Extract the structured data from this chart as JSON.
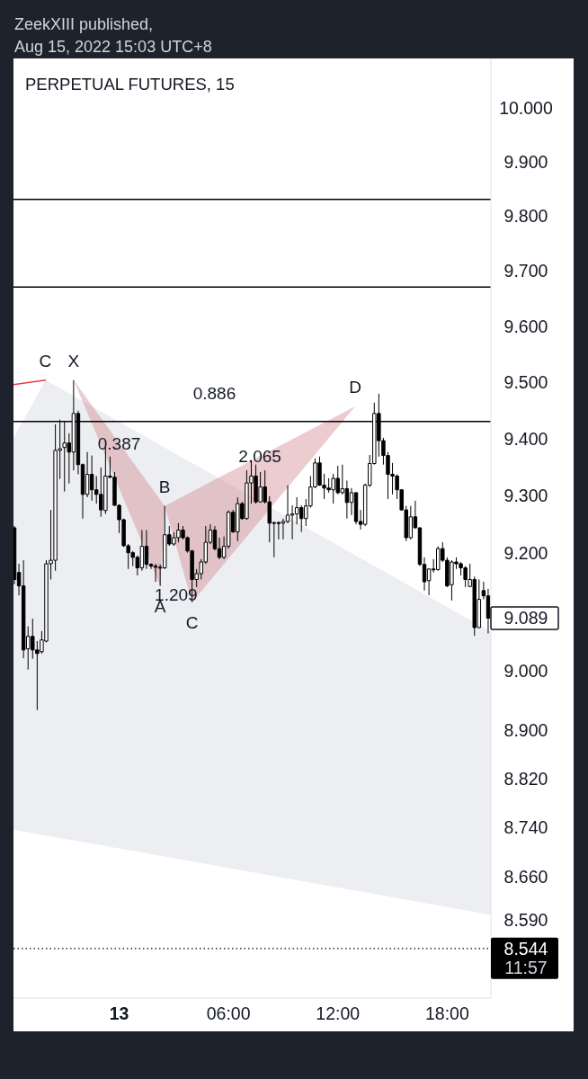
{
  "chart_data": {
    "type": "candlestick",
    "title": "PERPETUAL FUTURES, 15",
    "color": "#000000",
    "log": true,
    "x": [
      "2022-08-12T18:15",
      "2022-08-12T18:30",
      "2022-08-12T18:45",
      "2022-08-12T19:00",
      "2022-08-12T19:15",
      "2022-08-12T19:30",
      "2022-08-12T19:45",
      "2022-08-12T20:00",
      "2022-08-12T20:15",
      "2022-08-12T20:30",
      "2022-08-12T20:45",
      "2022-08-12T21:00",
      "2022-08-12T21:15",
      "2022-08-12T21:30",
      "2022-08-12T21:45",
      "2022-08-12T22:00",
      "2022-08-12T22:15",
      "2022-08-12T22:30",
      "2022-08-12T22:45",
      "2022-08-12T23:00",
      "2022-08-12T23:15",
      "2022-08-12T23:30",
      "2022-08-12T23:45",
      "2022-08-13T00:00",
      "2022-08-13T00:15",
      "2022-08-13T00:30",
      "2022-08-13T00:45",
      "2022-08-13T01:00",
      "2022-08-13T01:15",
      "2022-08-13T01:30",
      "2022-08-13T01:45",
      "2022-08-13T02:00",
      "2022-08-13T02:15",
      "2022-08-13T02:30",
      "2022-08-13T02:45",
      "2022-08-13T03:00",
      "2022-08-13T03:15",
      "2022-08-13T03:30",
      "2022-08-13T03:45",
      "2022-08-13T04:00",
      "2022-08-13T04:15",
      "2022-08-13T04:30",
      "2022-08-13T04:45",
      "2022-08-13T05:00",
      "2022-08-13T05:15",
      "2022-08-13T05:30",
      "2022-08-13T05:45",
      "2022-08-13T06:00",
      "2022-08-13T06:15",
      "2022-08-13T06:30",
      "2022-08-13T06:45",
      "2022-08-13T07:00",
      "2022-08-13T07:15",
      "2022-08-13T07:30",
      "2022-08-13T07:45",
      "2022-08-13T08:00",
      "2022-08-13T08:15",
      "2022-08-13T08:30",
      "2022-08-13T08:45",
      "2022-08-13T09:00",
      "2022-08-13T09:15",
      "2022-08-13T09:30",
      "2022-08-13T09:45",
      "2022-08-13T10:00",
      "2022-08-13T10:15",
      "2022-08-13T10:30",
      "2022-08-13T10:45",
      "2022-08-13T11:00",
      "2022-08-13T11:15",
      "2022-08-13T11:30",
      "2022-08-13T11:45",
      "2022-08-13T12:00",
      "2022-08-13T12:15",
      "2022-08-13T12:30",
      "2022-08-13T12:45",
      "2022-08-13T13:00",
      "2022-08-13T13:15",
      "2022-08-13T13:30",
      "2022-08-13T13:45",
      "2022-08-13T14:00",
      "2022-08-13T14:15",
      "2022-08-13T14:30",
      "2022-08-13T14:45",
      "2022-08-13T15:00",
      "2022-08-13T15:15",
      "2022-08-13T15:30",
      "2022-08-13T15:45",
      "2022-08-13T16:00",
      "2022-08-13T16:15",
      "2022-08-13T16:30",
      "2022-08-13T16:45",
      "2022-08-13T17:00",
      "2022-08-13T17:15",
      "2022-08-13T17:30",
      "2022-08-13T17:45",
      "2022-08-13T18:00",
      "2022-08-13T18:15",
      "2022-08-13T18:30",
      "2022-08-13T18:45",
      "2022-08-13T19:00",
      "2022-08-13T19:15",
      "2022-08-13T19:30",
      "2022-08-13T19:45",
      "2022-08-13T20:00",
      "2022-08-13T20:15"
    ],
    "ohlc": [
      [
        9.244,
        9.247,
        9.147,
        9.155
      ],
      [
        9.167,
        9.182,
        9.128,
        9.144
      ],
      [
        9.144,
        9.188,
        9.021,
        9.035
      ],
      [
        9.037,
        9.075,
        9.002,
        9.058
      ],
      [
        9.058,
        9.088,
        9.02,
        9.035
      ],
      [
        9.035,
        9.05,
        8.934,
        9.029
      ],
      [
        9.032,
        9.067,
        9.029,
        9.052
      ],
      [
        9.05,
        9.188,
        9.048,
        9.182
      ],
      [
        9.182,
        9.275,
        9.155,
        9.188
      ],
      [
        9.188,
        9.425,
        9.17,
        9.379
      ],
      [
        9.379,
        9.433,
        9.329,
        9.382
      ],
      [
        9.384,
        9.431,
        9.307,
        9.392
      ],
      [
        9.392,
        9.409,
        9.321,
        9.376
      ],
      [
        9.376,
        9.503,
        9.344,
        9.444
      ],
      [
        9.444,
        9.449,
        9.337,
        9.354
      ],
      [
        9.354,
        9.356,
        9.26,
        9.302
      ],
      [
        9.302,
        9.376,
        9.297,
        9.337
      ],
      [
        9.337,
        9.37,
        9.291,
        9.31
      ],
      [
        9.31,
        9.334,
        9.286,
        9.302
      ],
      [
        9.302,
        9.349,
        9.263,
        9.275
      ],
      [
        9.274,
        9.385,
        9.268,
        9.334
      ],
      [
        9.334,
        9.368,
        9.33,
        9.332
      ],
      [
        9.332,
        9.341,
        9.282,
        9.283
      ],
      [
        9.283,
        9.285,
        9.235,
        9.258
      ],
      [
        9.258,
        9.26,
        9.211,
        9.213
      ],
      [
        9.213,
        9.216,
        9.173,
        9.201
      ],
      [
        9.201,
        9.204,
        9.178,
        9.193
      ],
      [
        9.193,
        9.196,
        9.162,
        9.175
      ],
      [
        9.175,
        9.24,
        9.17,
        9.212
      ],
      [
        9.212,
        9.24,
        9.173,
        9.181
      ],
      [
        9.181,
        9.183,
        9.173,
        9.178
      ],
      [
        9.178,
        9.182,
        9.151,
        9.176
      ],
      [
        9.176,
        9.181,
        9.144,
        9.175
      ],
      [
        9.175,
        9.282,
        9.173,
        9.232
      ],
      [
        9.232,
        9.247,
        9.213,
        9.216
      ],
      [
        9.216,
        9.236,
        9.213,
        9.227
      ],
      [
        9.227,
        9.252,
        9.219,
        9.24
      ],
      [
        9.24,
        9.247,
        9.224,
        9.227
      ],
      [
        9.227,
        9.229,
        9.201,
        9.204
      ],
      [
        9.204,
        9.206,
        9.116,
        9.155
      ],
      [
        9.155,
        9.173,
        9.142,
        9.165
      ],
      [
        9.165,
        9.19,
        9.155,
        9.185
      ],
      [
        9.185,
        9.247,
        9.182,
        9.219
      ],
      [
        9.219,
        9.25,
        9.216,
        9.24
      ],
      [
        9.24,
        9.247,
        9.205,
        9.208
      ],
      [
        9.208,
        9.227,
        9.19,
        9.193
      ],
      [
        9.193,
        9.229,
        9.19,
        9.212
      ],
      [
        9.212,
        9.274,
        9.208,
        9.271
      ],
      [
        9.271,
        9.275,
        9.235,
        9.237
      ],
      [
        9.237,
        9.297,
        9.221,
        9.286
      ],
      [
        9.286,
        9.289,
        9.258,
        9.26
      ],
      [
        9.26,
        9.344,
        9.258,
        9.322
      ],
      [
        9.322,
        9.362,
        9.286,
        9.334
      ],
      [
        9.334,
        9.354,
        9.286,
        9.289
      ],
      [
        9.289,
        9.341,
        9.288,
        9.315
      ],
      [
        9.315,
        9.344,
        9.286,
        9.289
      ],
      [
        9.289,
        9.299,
        9.219,
        9.252
      ],
      [
        9.252,
        9.255,
        9.193,
        9.253
      ],
      [
        9.253,
        9.255,
        9.224,
        9.252
      ],
      [
        9.252,
        9.26,
        9.224,
        9.255
      ],
      [
        9.255,
        9.318,
        9.252,
        9.266
      ],
      [
        9.266,
        9.283,
        9.224,
        9.268
      ],
      [
        9.268,
        9.297,
        9.25,
        9.279
      ],
      [
        9.279,
        9.283,
        9.237,
        9.26
      ],
      [
        9.26,
        9.294,
        9.247,
        9.282
      ],
      [
        9.282,
        9.334,
        9.279,
        9.315
      ],
      [
        9.315,
        9.365,
        9.313,
        9.357
      ],
      [
        9.357,
        9.368,
        9.317,
        9.318
      ],
      [
        9.318,
        9.338,
        9.294,
        9.313
      ],
      [
        9.313,
        9.33,
        9.305,
        9.31
      ],
      [
        9.31,
        9.338,
        9.286,
        9.33
      ],
      [
        9.33,
        9.352,
        9.302,
        9.305
      ],
      [
        9.305,
        9.354,
        9.302,
        9.312
      ],
      [
        9.312,
        9.326,
        9.26,
        9.288
      ],
      [
        9.288,
        9.313,
        9.266,
        9.305
      ],
      [
        9.305,
        9.306,
        9.25,
        9.255
      ],
      [
        9.255,
        9.275,
        9.241,
        9.25
      ],
      [
        9.25,
        9.321,
        9.247,
        9.318
      ],
      [
        9.318,
        9.371,
        9.315,
        9.356
      ],
      [
        9.356,
        9.463,
        9.354,
        9.444
      ],
      [
        9.444,
        9.479,
        9.368,
        9.396
      ],
      [
        9.396,
        9.401,
        9.354,
        9.37
      ],
      [
        9.37,
        9.376,
        9.294,
        9.337
      ],
      [
        9.337,
        9.357,
        9.302,
        9.334
      ],
      [
        9.334,
        9.337,
        9.294,
        9.31
      ],
      [
        9.31,
        9.311,
        9.274,
        9.275
      ],
      [
        9.275,
        9.282,
        9.221,
        9.227
      ],
      [
        9.227,
        9.282,
        9.224,
        9.263
      ],
      [
        9.263,
        9.291,
        9.243,
        9.244
      ],
      [
        9.244,
        9.245,
        9.178,
        9.181
      ],
      [
        9.181,
        9.193,
        9.136,
        9.151
      ],
      [
        9.153,
        9.174,
        9.128,
        9.173
      ],
      [
        9.173,
        9.19,
        9.167,
        9.172
      ],
      [
        9.172,
        9.212,
        9.17,
        9.208
      ],
      [
        9.208,
        9.219,
        9.185,
        9.188
      ],
      [
        9.188,
        9.193,
        9.142,
        9.144
      ],
      [
        9.146,
        9.188,
        9.119,
        9.185
      ],
      [
        9.185,
        9.193,
        9.173,
        9.182
      ],
      [
        9.182,
        9.185,
        9.162,
        9.175
      ],
      [
        9.175,
        9.178,
        9.142,
        9.155
      ],
      [
        9.143,
        9.182,
        9.142,
        9.155
      ],
      [
        9.155,
        9.16,
        9.059,
        9.073
      ],
      [
        9.073,
        9.155,
        9.072,
        9.121
      ],
      [
        9.136,
        9.151,
        9.121,
        9.127
      ],
      [
        9.127,
        9.139,
        9.063,
        9.089
      ]
    ],
    "xlim": [
      "2022-08-12T18:12",
      "2022-08-13T20:24"
    ],
    "xticks": [
      {
        "value": "2022-08-13T00:00",
        "label": "13"
      },
      {
        "value": "2022-08-13T06:00",
        "label": "06:00"
      },
      {
        "value": "2022-08-13T12:00",
        "label": "12:00"
      },
      {
        "value": "2022-08-13T18:00",
        "label": "18:00"
      }
    ],
    "ylim": [
      8.465,
      10.093
    ],
    "yticks": [
      {
        "value": 10,
        "label": "10.000"
      },
      {
        "value": 9.9,
        "label": "9.900"
      },
      {
        "value": 9.8,
        "label": "9.800"
      },
      {
        "value": 9.7,
        "label": "9.700"
      },
      {
        "value": 9.6,
        "label": "9.600"
      },
      {
        "value": 9.5,
        "label": "9.500"
      },
      {
        "value": 9.4,
        "label": "9.400"
      },
      {
        "value": 9.3,
        "label": "9.300"
      },
      {
        "value": 9.2,
        "label": "9.200"
      },
      {
        "value": 9,
        "label": "9.000"
      },
      {
        "value": 8.9,
        "label": "8.900"
      },
      {
        "value": 8.82,
        "label": "8.820"
      },
      {
        "value": 8.74,
        "label": "8.740"
      },
      {
        "value": 8.66,
        "label": "8.660"
      },
      {
        "value": 8.59,
        "label": "8.590"
      }
    ],
    "ref_lines": [
      {
        "axis": "y",
        "value": 9.83,
        "color": "#000000"
      },
      {
        "axis": "y",
        "value": 9.67,
        "color": "#000000"
      },
      {
        "axis": "y",
        "value": 9.43,
        "color": "#000000"
      },
      {
        "axis": "y",
        "value": 8.544,
        "label": "8.544\n11:57",
        "color": "#000000",
        "line_style": "dotted"
      }
    ],
    "series": [
      {
        "type": "line",
        "x": [
          "2022-08-12T18:12",
          "2022-08-12T19:57",
          "2022-08-13T20:24"
        ],
        "values": [
          null,
          null,
          null
        ],
        "lower": [
          8.736,
          8.727,
          8.598
        ],
        "upper": [
          9.401,
          9.503,
          9.066
        ],
        "color": "#eceef1"
      },
      {
        "type": "line",
        "x": [
          "2022-08-12T18:12",
          "2022-08-12T19:57"
        ],
        "values": [
          9.495,
          9.503
        ],
        "color": "#f23645"
      }
    ],
    "annotations": [
      "ZeekXIII published,",
      "Aug 15, 2022 15:03 UTC+8",
      "D",
      "0.387",
      "1.209",
      "2.065",
      "0.886",
      {
        "text": "X",
        "x": "2022-08-12T21:30",
        "y": 9.503
      },
      {
        "text": "A",
        "x": "2022-08-13T02:15",
        "y": 9.144
      },
      {
        "text": "B",
        "x": "2022-08-13T02:30",
        "y": 9.282
      },
      {
        "text": "C",
        "x": "2022-08-13T04:00",
        "y": 9.116
      },
      {
        "text": "C",
        "x": "2022-08-12T19:57",
        "y": 9.503
      },
      {
        "text": "9.089",
        "x": "2022-08-13T20:24",
        "y": 9.089
      }
    ]
  }
}
